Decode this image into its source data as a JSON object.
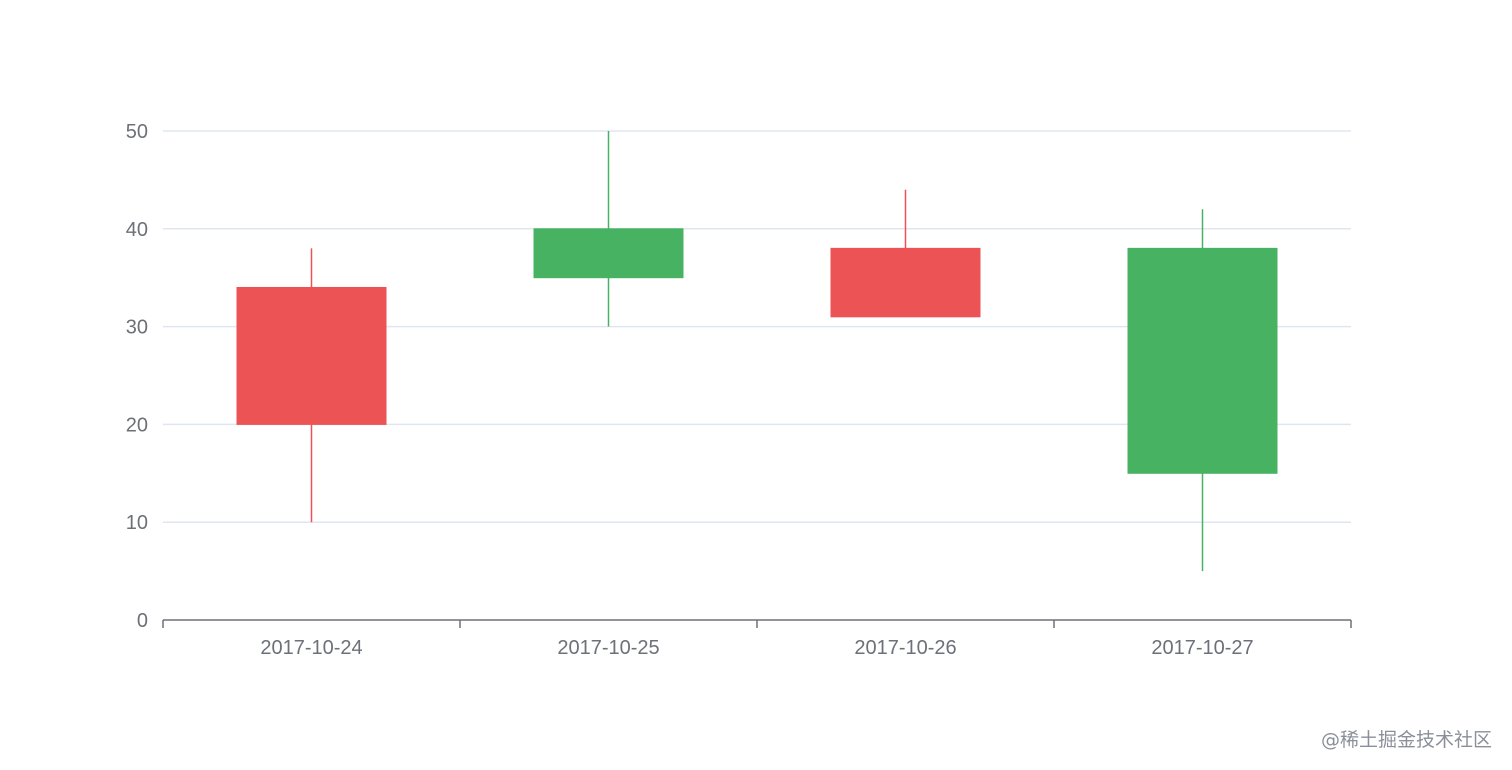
{
  "chart_data": {
    "type": "candlestick",
    "categories": [
      "2017-10-24",
      "2017-10-25",
      "2017-10-26",
      "2017-10-27"
    ],
    "series": [
      {
        "values": [
          {
            "open": 20,
            "close": 34,
            "low": 10,
            "high": 38
          },
          {
            "open": 40,
            "close": 35,
            "low": 30,
            "high": 50
          },
          {
            "open": 31,
            "close": 38,
            "low": 33,
            "high": 44
          },
          {
            "open": 38,
            "close": 15,
            "low": 5,
            "high": 42
          }
        ]
      }
    ],
    "ylim": [
      0,
      50
    ],
    "yticks": [
      0,
      10,
      20,
      30,
      40,
      50
    ],
    "title": "",
    "xlabel": "",
    "ylabel": "",
    "grid": true,
    "colors": {
      "up": "#ec5355",
      "down": "#47b262",
      "grid": "#e0e6f1",
      "axis": "#6e7079"
    }
  },
  "watermark": "@稀土掘金技术社区"
}
